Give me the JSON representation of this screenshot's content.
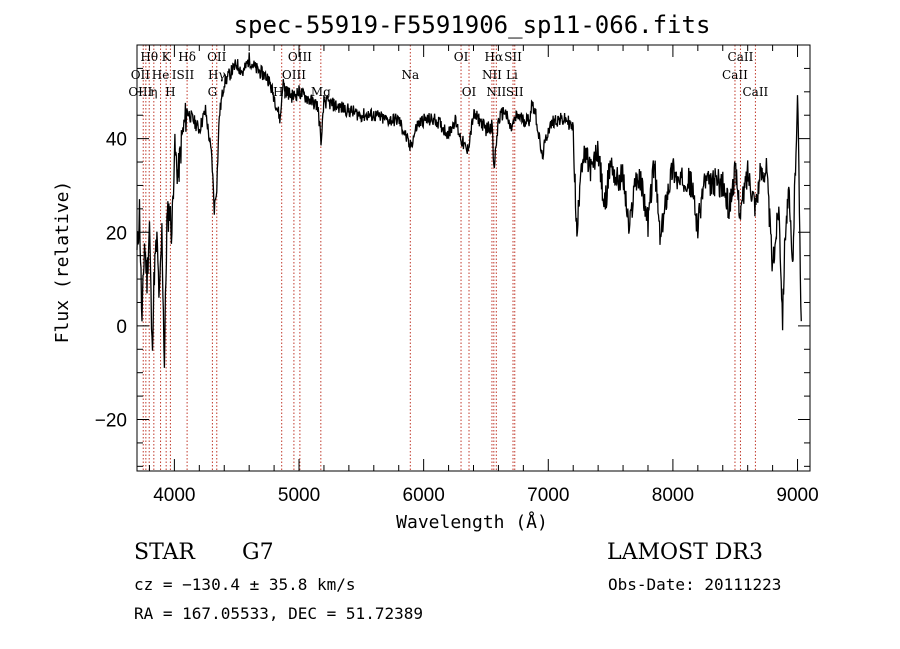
{
  "chart_data": {
    "type": "line",
    "title": "spec-55919-F5591906_sp11-066.fits",
    "xlabel": "Wavelength (Å)",
    "ylabel": "Flux (relative)",
    "xlim": [
      3700,
      9100
    ],
    "ylim": [
      -31,
      60
    ],
    "x_ticks": [
      4000,
      5000,
      6000,
      7000,
      8000,
      9000
    ],
    "y_ticks": [
      -20,
      0,
      20,
      40
    ],
    "spectrum": {
      "x": [
        3700,
        3720,
        3740,
        3760,
        3780,
        3800,
        3820,
        3840,
        3860,
        3880,
        3900,
        3920,
        3940,
        3960,
        3980,
        4000,
        4030,
        4060,
        4100,
        4150,
        4200,
        4250,
        4300,
        4320,
        4340,
        4360,
        4400,
        4450,
        4500,
        4550,
        4600,
        4650,
        4700,
        4750,
        4800,
        4850,
        4870,
        4900,
        4950,
        5000,
        5050,
        5100,
        5150,
        5180,
        5200,
        5300,
        5400,
        5500,
        5600,
        5700,
        5800,
        5850,
        5890,
        5950,
        6000,
        6100,
        6200,
        6250,
        6300,
        6350,
        6400,
        6450,
        6500,
        6550,
        6563,
        6600,
        6650,
        6700,
        6750,
        6800,
        6850,
        6870,
        6900,
        6950,
        7000,
        7050,
        7100,
        7150,
        7200,
        7230,
        7260,
        7300,
        7350,
        7400,
        7450,
        7500,
        7550,
        7600,
        7650,
        7700,
        7750,
        7800,
        7850,
        7900,
        7950,
        8000,
        8050,
        8100,
        8150,
        8200,
        8250,
        8300,
        8350,
        8400,
        8450,
        8500,
        8542,
        8600,
        8662,
        8700,
        8750,
        8800,
        8850,
        8880,
        8900,
        8930,
        8960,
        9000,
        9030
      ],
      "y": [
        15,
        25,
        0,
        18,
        10,
        22,
        -5,
        12,
        18,
        5,
        20,
        -8,
        22,
        25,
        20,
        38,
        32,
        40,
        46,
        44,
        42,
        46,
        36,
        25,
        30,
        45,
        52,
        54,
        56,
        54,
        57,
        55,
        54,
        53,
        49,
        44,
        52,
        50,
        49,
        50,
        49,
        48,
        47,
        39,
        48,
        47,
        46,
        45,
        45,
        44,
        44,
        41,
        38,
        43,
        44,
        44,
        41,
        44,
        40,
        37,
        45,
        44,
        42,
        43,
        33,
        44,
        46,
        42,
        45,
        44,
        44,
        48,
        45,
        36,
        42,
        44,
        44,
        44,
        42,
        18,
        35,
        36,
        33,
        38,
        25,
        35,
        31,
        32,
        20,
        32,
        30,
        22,
        35,
        18,
        28,
        34,
        30,
        32,
        30,
        21,
        31,
        30,
        31,
        30,
        25,
        33,
        24,
        33,
        26,
        32,
        34,
        12,
        26,
        2,
        20,
        28,
        12,
        50,
        1
      ]
    },
    "spectral_lines": [
      {
        "label": "Hθ",
        "wavelength": 3798,
        "row": 0
      },
      {
        "label": "K",
        "wavelength": 3934,
        "row": 0
      },
      {
        "label": "Hδ",
        "wavelength": 4102,
        "row": 0
      },
      {
        "label": "OII",
        "wavelength": 4340,
        "row": 0
      },
      {
        "label": "OIII",
        "wavelength": 5007,
        "row": 0
      },
      {
        "label": "OI",
        "wavelength": 6300,
        "row": 0
      },
      {
        "label": "Hα",
        "wavelength": 6563,
        "row": 0
      },
      {
        "label": "SII",
        "wavelength": 6717,
        "row": 0
      },
      {
        "label": "CaII",
        "wavelength": 8542,
        "row": 0
      },
      {
        "label": "OII",
        "wavelength": 3727,
        "row": 1
      },
      {
        "label": "He",
        "wavelength": 3889,
        "row": 1
      },
      {
        "label": "ISII",
        "wavelength": 4069,
        "row": 1
      },
      {
        "label": "Hγ",
        "wavelength": 4340,
        "row": 1
      },
      {
        "label": "OIII",
        "wavelength": 4959,
        "row": 1
      },
      {
        "label": "Na",
        "wavelength": 5893,
        "row": 1
      },
      {
        "label": "NII",
        "wavelength": 6548,
        "row": 1
      },
      {
        "label": "Li",
        "wavelength": 6708,
        "row": 1
      },
      {
        "label": "CaII",
        "wavelength": 8498,
        "row": 1
      },
      {
        "label": "OIII",
        "wavelength": 3727,
        "row": 2
      },
      {
        "label": "η",
        "wavelength": 3835,
        "row": 2
      },
      {
        "label": "H",
        "wavelength": 3968,
        "row": 2
      },
      {
        "label": "G",
        "wavelength": 4305,
        "row": 2
      },
      {
        "label": "Hβ",
        "wavelength": 4861,
        "row": 2
      },
      {
        "label": "Mg",
        "wavelength": 5175,
        "row": 2
      },
      {
        "label": "OI",
        "wavelength": 6364,
        "row": 2
      },
      {
        "label": "NII",
        "wavelength": 6583,
        "row": 2
      },
      {
        "label": "SII",
        "wavelength": 6731,
        "row": 2
      },
      {
        "label": "CaII",
        "wavelength": 8662,
        "row": 2
      }
    ],
    "extra_line_wavelengths": [
      3750,
      3771,
      3798,
      3835,
      3889,
      3934,
      3968,
      4102,
      4305,
      4340,
      4861,
      4959,
      5007,
      5175,
      5893,
      6300,
      6364,
      6548,
      6563,
      6583,
      6717,
      6731,
      8498,
      8542,
      8662
    ]
  },
  "info": {
    "object_class": "STAR",
    "subclass": "G7",
    "survey": "LAMOST DR3",
    "redshift": "cz = −130.4 ± 35.8 km/s",
    "obs_date": "Obs-Date: 20111223",
    "coords": "RA = 167.05533, DEC =  51.72389"
  }
}
